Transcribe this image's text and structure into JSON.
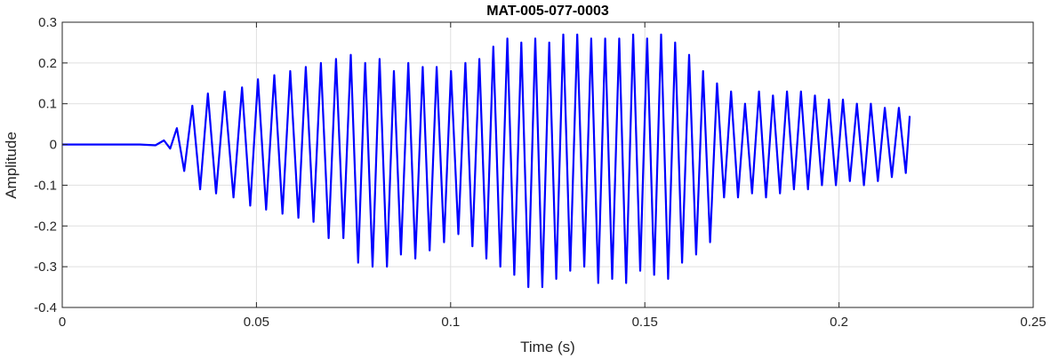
{
  "chart_data": {
    "type": "line",
    "title": "MAT-005-077-0003",
    "xlabel": "Time (s)",
    "ylabel": "Amplitude",
    "xlim": [
      0,
      0.25
    ],
    "ylim": [
      -0.4,
      0.3
    ],
    "xticks": [
      0,
      0.05,
      0.1,
      0.15,
      0.2,
      0.25
    ],
    "xtick_labels": [
      "0",
      "0.05",
      "0.1",
      "0.15",
      "0.2",
      "0.25"
    ],
    "yticks": [
      -0.4,
      -0.3,
      -0.2,
      -0.1,
      0,
      0.1,
      0.2,
      0.3
    ],
    "ytick_labels": [
      "-0.4",
      "-0.3",
      "-0.2",
      "-0.1",
      "0",
      "0.1",
      "0.2",
      "0.3"
    ],
    "grid": true,
    "series": [
      {
        "color": "#0000ff",
        "x": [
          0.0,
          0.005,
          0.01,
          0.015,
          0.02,
          0.024,
          0.0262,
          0.0278,
          0.0295,
          0.0314,
          0.0335,
          0.0355,
          0.0375,
          0.0396,
          0.0418,
          0.0441,
          0.0463,
          0.0484,
          0.0504,
          0.0525,
          0.0546,
          0.0567,
          0.0587,
          0.0608,
          0.0627,
          0.0647,
          0.0666,
          0.0686,
          0.0705,
          0.0724,
          0.0743,
          0.0762,
          0.078,
          0.0799,
          0.0817,
          0.0836,
          0.0854,
          0.0872,
          0.0891,
          0.0909,
          0.0928,
          0.0946,
          0.0964,
          0.0983,
          0.1001,
          0.102,
          0.1038,
          0.1056,
          0.1074,
          0.1092,
          0.111,
          0.1128,
          0.1146,
          0.1164,
          0.1182,
          0.12,
          0.1218,
          0.1236,
          0.1254,
          0.1272,
          0.129,
          0.1308,
          0.1326,
          0.1344,
          0.1362,
          0.138,
          0.1398,
          0.1416,
          0.1434,
          0.1452,
          0.147,
          0.1488,
          0.1506,
          0.1524,
          0.1542,
          0.156,
          0.1578,
          0.1596,
          0.1614,
          0.1632,
          0.165,
          0.1668,
          0.1686,
          0.1704,
          0.1722,
          0.174,
          0.1758,
          0.1776,
          0.1794,
          0.1812,
          0.183,
          0.1848,
          0.1866,
          0.1884,
          0.1902,
          0.192,
          0.1938,
          0.1956,
          0.1974,
          0.1992,
          0.201,
          0.2028,
          0.2046,
          0.2064,
          0.2082,
          0.21,
          0.2118,
          0.2136,
          0.2154,
          0.2172,
          0.2182
        ],
        "y": [
          0.0,
          0.0,
          0.0,
          0.0,
          0.0,
          -0.002,
          0.01,
          -0.01,
          0.04,
          -0.065,
          0.095,
          -0.11,
          0.125,
          -0.12,
          0.13,
          -0.13,
          0.14,
          -0.15,
          0.16,
          -0.16,
          0.17,
          -0.17,
          0.18,
          -0.18,
          0.19,
          -0.19,
          0.2,
          -0.23,
          0.21,
          -0.23,
          0.22,
          -0.29,
          0.2,
          -0.3,
          0.21,
          -0.3,
          0.18,
          -0.27,
          0.2,
          -0.28,
          0.19,
          -0.26,
          0.19,
          -0.24,
          0.18,
          -0.22,
          0.2,
          -0.25,
          0.21,
          -0.28,
          0.24,
          -0.3,
          0.26,
          -0.32,
          0.25,
          -0.35,
          0.26,
          -0.35,
          0.25,
          -0.33,
          0.27,
          -0.31,
          0.27,
          -0.3,
          0.26,
          -0.34,
          0.26,
          -0.33,
          0.26,
          -0.34,
          0.27,
          -0.31,
          0.26,
          -0.32,
          0.27,
          -0.33,
          0.25,
          -0.29,
          0.22,
          -0.27,
          0.18,
          -0.24,
          0.15,
          -0.13,
          0.13,
          -0.13,
          0.1,
          -0.12,
          0.13,
          -0.13,
          0.12,
          -0.12,
          0.13,
          -0.11,
          0.13,
          -0.11,
          0.12,
          -0.1,
          0.11,
          -0.1,
          0.11,
          -0.09,
          0.1,
          -0.1,
          0.1,
          -0.09,
          0.09,
          -0.08,
          0.09,
          -0.07,
          0.07
        ]
      }
    ]
  }
}
